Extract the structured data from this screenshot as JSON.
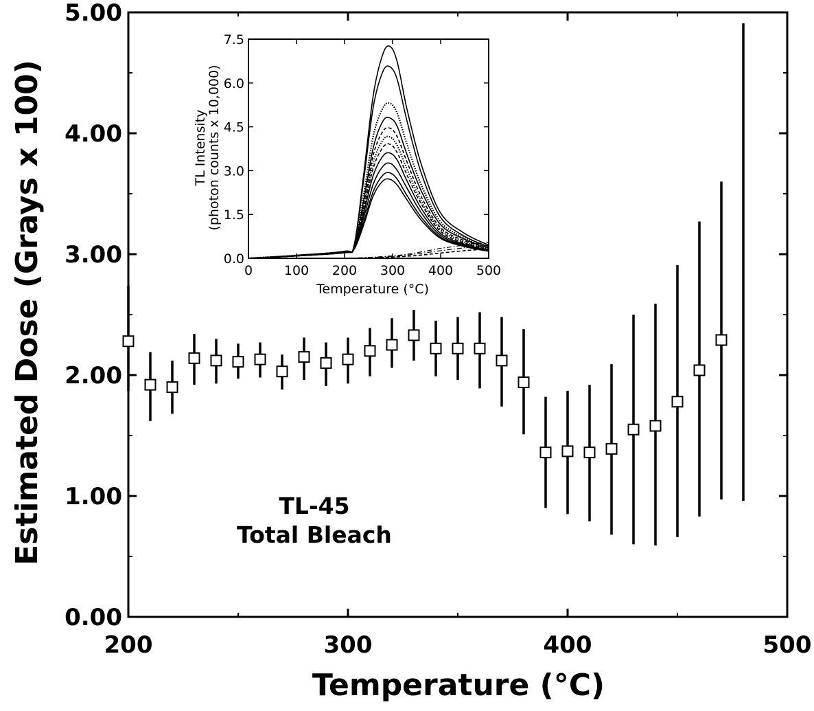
{
  "chart_data": [
    {
      "type": "scatter",
      "xlabel": "Temperature (°C)",
      "ylabel": "Estimated Dose (Grays x 100)",
      "xlim": [
        200,
        500
      ],
      "ylim": [
        0,
        5
      ],
      "x_ticks": [
        "200",
        "300",
        "400",
        "500"
      ],
      "y_ticks": [
        "0.00",
        "1.00",
        "2.00",
        "3.00",
        "4.00",
        "5.00"
      ],
      "annotation": [
        "TL-45",
        "Total Bleach"
      ],
      "marker": "open-square",
      "points": [
        {
          "x": 200,
          "y": 2.28,
          "lo": 1.87,
          "hi": 2.74
        },
        {
          "x": 210,
          "y": 1.92,
          "lo": 1.62,
          "hi": 2.19
        },
        {
          "x": 220,
          "y": 1.9,
          "lo": 1.68,
          "hi": 2.12
        },
        {
          "x": 230,
          "y": 2.14,
          "lo": 1.92,
          "hi": 2.34
        },
        {
          "x": 240,
          "y": 2.12,
          "lo": 1.93,
          "hi": 2.3
        },
        {
          "x": 250,
          "y": 2.11,
          "lo": 1.97,
          "hi": 2.26
        },
        {
          "x": 260,
          "y": 2.13,
          "lo": 1.98,
          "hi": 2.27
        },
        {
          "x": 270,
          "y": 2.03,
          "lo": 1.88,
          "hi": 2.17
        },
        {
          "x": 280,
          "y": 2.15,
          "lo": 1.96,
          "hi": 2.31
        },
        {
          "x": 290,
          "y": 2.1,
          "lo": 1.91,
          "hi": 2.27
        },
        {
          "x": 300,
          "y": 2.13,
          "lo": 1.93,
          "hi": 2.31
        },
        {
          "x": 310,
          "y": 2.2,
          "lo": 1.99,
          "hi": 2.39
        },
        {
          "x": 320,
          "y": 2.25,
          "lo": 2.06,
          "hi": 2.47
        },
        {
          "x": 330,
          "y": 2.33,
          "lo": 2.12,
          "hi": 2.54
        },
        {
          "x": 340,
          "y": 2.22,
          "lo": 1.99,
          "hi": 2.45
        },
        {
          "x": 350,
          "y": 2.22,
          "lo": 1.96,
          "hi": 2.48
        },
        {
          "x": 360,
          "y": 2.22,
          "lo": 1.89,
          "hi": 2.52
        },
        {
          "x": 370,
          "y": 2.12,
          "lo": 1.74,
          "hi": 2.48
        },
        {
          "x": 380,
          "y": 1.94,
          "lo": 1.51,
          "hi": 2.38
        },
        {
          "x": 390,
          "y": 1.36,
          "lo": 0.9,
          "hi": 1.82
        },
        {
          "x": 400,
          "y": 1.37,
          "lo": 0.85,
          "hi": 1.87
        },
        {
          "x": 410,
          "y": 1.36,
          "lo": 0.79,
          "hi": 1.92
        },
        {
          "x": 420,
          "y": 1.39,
          "lo": 0.68,
          "hi": 2.09
        },
        {
          "x": 430,
          "y": 1.55,
          "lo": 0.6,
          "hi": 2.5
        },
        {
          "x": 440,
          "y": 1.58,
          "lo": 0.59,
          "hi": 2.59
        },
        {
          "x": 450,
          "y": 1.78,
          "lo": 0.66,
          "hi": 2.91
        },
        {
          "x": 460,
          "y": 2.04,
          "lo": 0.83,
          "hi": 3.27
        },
        {
          "x": 470,
          "y": 2.29,
          "lo": 0.97,
          "hi": 3.6
        },
        {
          "x": 480,
          "y": null,
          "lo": 0.96,
          "hi": 4.91
        }
      ]
    },
    {
      "type": "line",
      "xlabel": "Temperature (°C)",
      "ylabel": "TL Intensity",
      "ylabel2": "(photon counts x 10,000)",
      "xlim": [
        0,
        500
      ],
      "ylim": [
        0,
        7.5
      ],
      "x_ticks": [
        "0",
        "100",
        "200",
        "300",
        "400",
        "500"
      ],
      "y_ticks": [
        "0.0",
        "1.5",
        "3.0",
        "4.5",
        "6.0",
        "7.5"
      ],
      "x": [
        0,
        100,
        200,
        220,
        240,
        260,
        280,
        295,
        310,
        330,
        360,
        400,
        450,
        500
      ],
      "series": [
        {
          "values": [
            0,
            0.1,
            0.24,
            0.45,
            2.9,
            5.6,
            7.0,
            7.25,
            6.7,
            5.1,
            3.2,
            1.55,
            0.85,
            0.45
          ],
          "style": "solid"
        },
        {
          "values": [
            0,
            0.1,
            0.24,
            0.45,
            2.7,
            5.2,
            6.4,
            6.55,
            6.1,
            4.7,
            2.9,
            1.4,
            0.75,
            0.4
          ],
          "style": "solid"
        },
        {
          "values": [
            0,
            0.1,
            0.23,
            0.4,
            2.2,
            4.2,
            5.15,
            5.3,
            4.95,
            3.9,
            2.5,
            1.25,
            0.7,
            0.4
          ],
          "style": "dotted"
        },
        {
          "values": [
            0,
            0.09,
            0.22,
            0.38,
            2.0,
            3.8,
            4.7,
            4.8,
            4.5,
            3.55,
            2.3,
            1.15,
            0.65,
            0.35
          ],
          "style": "solid"
        },
        {
          "values": [
            0,
            0.09,
            0.22,
            0.37,
            1.85,
            3.55,
            4.35,
            4.45,
            4.15,
            3.3,
            2.1,
            1.05,
            0.6,
            0.35
          ],
          "style": "dashed"
        },
        {
          "values": [
            0,
            0.09,
            0.21,
            0.36,
            1.75,
            3.3,
            4.05,
            4.15,
            3.85,
            3.05,
            1.95,
            0.98,
            0.55,
            0.32
          ],
          "style": "dotted"
        },
        {
          "values": [
            0,
            0.09,
            0.21,
            0.35,
            1.65,
            3.1,
            3.8,
            3.9,
            3.6,
            2.85,
            1.85,
            0.92,
            0.52,
            0.3
          ],
          "style": "dashed"
        },
        {
          "values": [
            0,
            0.08,
            0.2,
            0.34,
            1.55,
            2.85,
            3.5,
            3.6,
            3.35,
            2.65,
            1.7,
            0.85,
            0.48,
            0.28
          ],
          "style": "solid"
        },
        {
          "values": [
            0,
            0.08,
            0.2,
            0.33,
            1.4,
            2.55,
            3.15,
            3.25,
            3.0,
            2.4,
            1.55,
            0.78,
            0.45,
            0.26
          ],
          "style": "solid"
        },
        {
          "values": [
            0,
            0.08,
            0.19,
            0.32,
            1.25,
            2.3,
            2.85,
            2.92,
            2.7,
            2.15,
            1.4,
            0.72,
            0.42,
            0.25
          ],
          "style": "solid"
        },
        {
          "values": [
            0,
            0.08,
            0.19,
            0.31,
            1.15,
            2.15,
            2.65,
            2.7,
            2.5,
            2.0,
            1.3,
            0.68,
            0.4,
            0.24
          ],
          "style": "solid"
        },
        {
          "values": [
            0,
            0.0,
            0.0,
            0.01,
            0.02,
            0.04,
            0.06,
            0.08,
            0.1,
            0.14,
            0.22,
            0.34,
            0.45,
            0.55
          ],
          "style": "dashdot"
        },
        {
          "values": [
            0,
            0.0,
            0.0,
            0.01,
            0.02,
            0.03,
            0.05,
            0.06,
            0.08,
            0.11,
            0.17,
            0.26,
            0.36,
            0.44
          ],
          "style": "dashdot"
        },
        {
          "values": [
            0,
            0.0,
            0.0,
            0.0,
            0.01,
            0.02,
            0.03,
            0.04,
            0.05,
            0.07,
            0.11,
            0.18,
            0.26,
            0.32
          ],
          "style": "dashed"
        }
      ]
    }
  ]
}
